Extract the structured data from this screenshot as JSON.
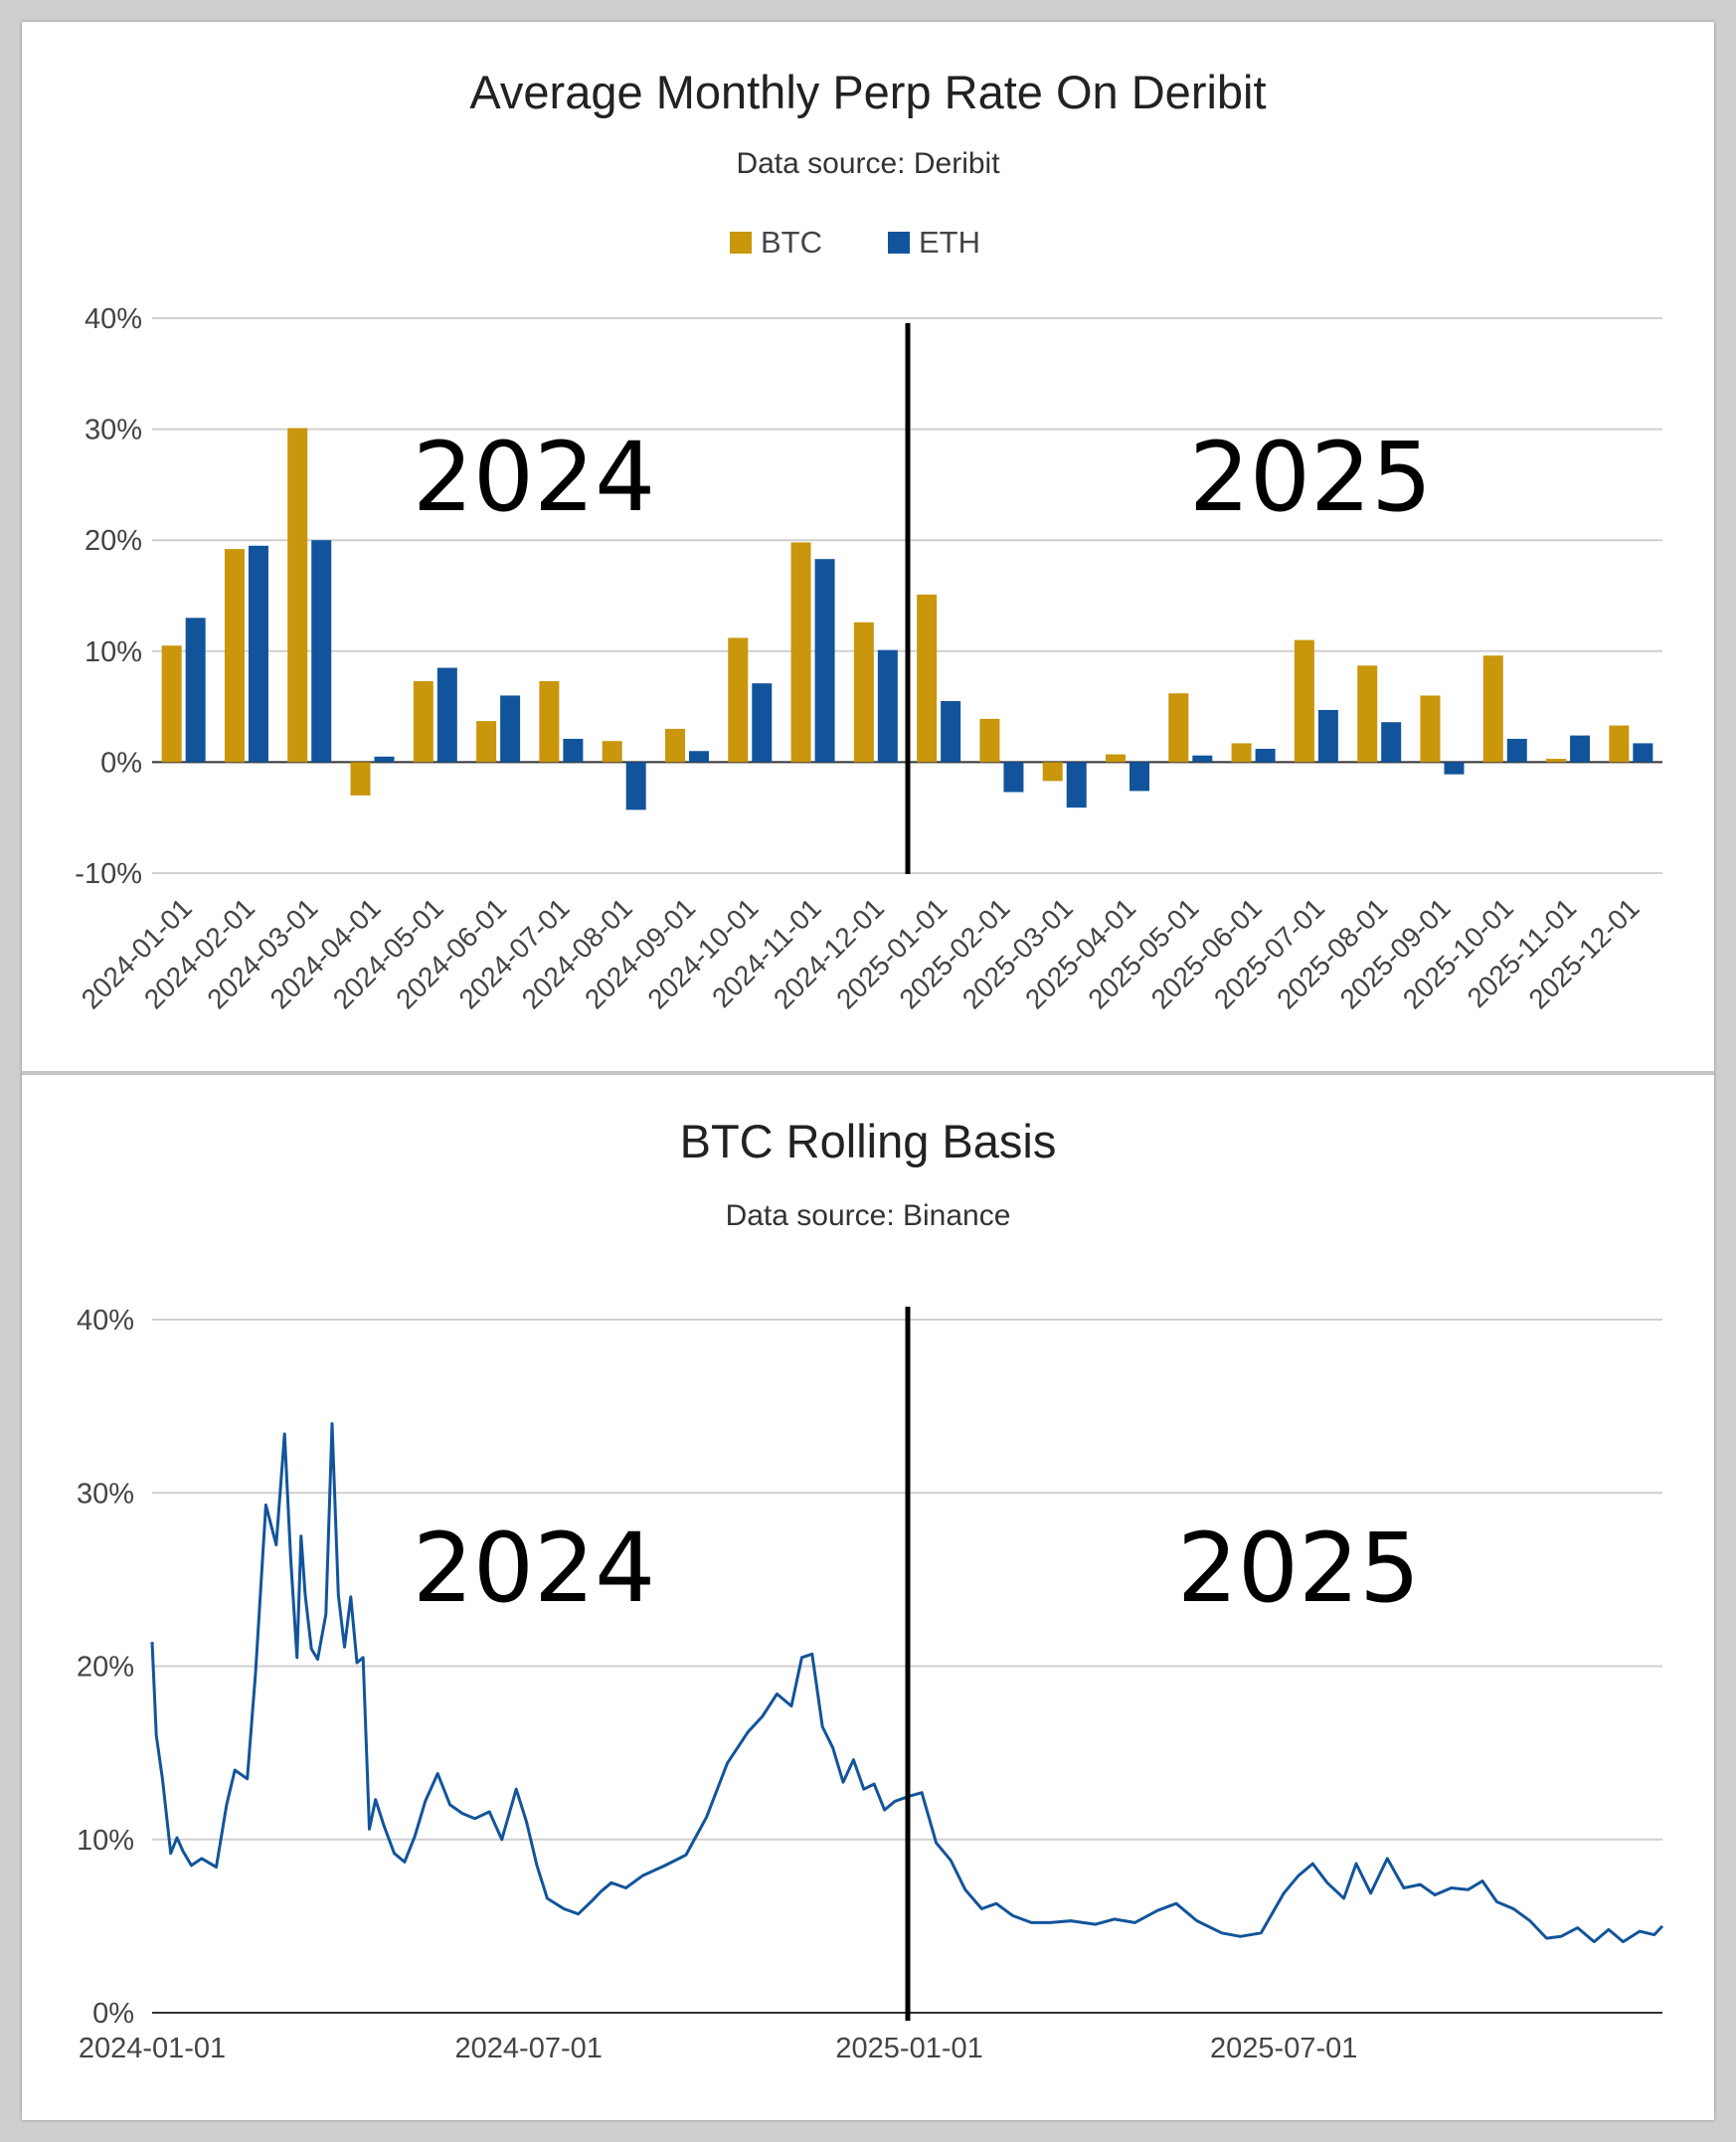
{
  "chart_data": [
    {
      "type": "bar",
      "title": "Average Monthly Perp Rate On Deribit",
      "subtitle": "Data source: Deribit",
      "legend_position": "top-center",
      "ylim": [
        -10,
        40
      ],
      "yticks": [
        "-10%",
        "0%",
        "10%",
        "20%",
        "30%",
        "40%"
      ],
      "grid": true,
      "categories": [
        "2024-01-01",
        "2024-02-01",
        "2024-03-01",
        "2024-04-01",
        "2024-05-01",
        "2024-06-01",
        "2024-07-01",
        "2024-08-01",
        "2024-09-01",
        "2024-10-01",
        "2024-11-01",
        "2024-12-01",
        "2025-01-01",
        "2025-02-01",
        "2025-03-01",
        "2025-04-01",
        "2025-05-01",
        "2025-06-01",
        "2025-07-01",
        "2025-08-01",
        "2025-09-01",
        "2025-10-01",
        "2025-11-01",
        "2025-12-01"
      ],
      "series": [
        {
          "name": "BTC",
          "color": "#c9960c",
          "values": [
            10.5,
            19.2,
            30.1,
            -3.0,
            7.3,
            3.7,
            7.3,
            1.9,
            3.0,
            11.2,
            19.8,
            12.6,
            15.1,
            3.9,
            -1.7,
            0.7,
            6.2,
            1.7,
            11.0,
            8.7,
            6.0,
            9.6,
            0.3,
            3.3
          ]
        },
        {
          "name": "ETH",
          "color": "#12549b",
          "values": [
            13.0,
            19.5,
            20.0,
            0.5,
            8.5,
            6.0,
            2.1,
            -4.3,
            1.0,
            7.1,
            18.3,
            10.1,
            5.5,
            -2.7,
            -4.1,
            -2.6,
            0.6,
            1.2,
            4.7,
            3.6,
            -1.1,
            2.1,
            2.4,
            1.7
          ]
        }
      ],
      "annotations": [
        "2024",
        "2025"
      ],
      "divider_at": "2025-01-01"
    },
    {
      "type": "line",
      "title": "BTC Rolling Basis",
      "subtitle": "Data source: Binance",
      "ylim": [
        0,
        40
      ],
      "yticks": [
        "0%",
        "10%",
        "20%",
        "30%",
        "40%"
      ],
      "xticks": [
        "2024-01-01",
        "2024-07-01",
        "2025-01-01",
        "2025-07-01"
      ],
      "xlim": [
        "2024-01-01",
        "2025-12-31"
      ],
      "grid": true,
      "series": [
        {
          "color": "#12549b",
          "x": [
            "2024-01-01",
            "2024-01-03",
            "2024-01-06",
            "2024-01-10",
            "2024-01-13",
            "2024-01-16",
            "2024-01-20",
            "2024-01-25",
            "2024-02-01",
            "2024-02-06",
            "2024-02-10",
            "2024-02-16",
            "2024-02-20",
            "2024-02-25",
            "2024-03-01",
            "2024-03-05",
            "2024-03-08",
            "2024-03-11",
            "2024-03-13",
            "2024-03-15",
            "2024-03-18",
            "2024-03-21",
            "2024-03-25",
            "2024-03-28",
            "2024-03-31",
            "2024-04-03",
            "2024-04-06",
            "2024-04-09",
            "2024-04-12",
            "2024-04-15",
            "2024-04-18",
            "2024-04-22",
            "2024-04-27",
            "2024-05-02",
            "2024-05-07",
            "2024-05-12",
            "2024-05-18",
            "2024-05-24",
            "2024-05-30",
            "2024-06-05",
            "2024-06-12",
            "2024-06-18",
            "2024-06-25",
            "2024-06-30",
            "2024-07-05",
            "2024-07-10",
            "2024-07-18",
            "2024-07-25",
            "2024-08-01",
            "2024-08-05",
            "2024-08-10",
            "2024-08-17",
            "2024-08-25",
            "2024-09-05",
            "2024-09-15",
            "2024-09-25",
            "2024-10-05",
            "2024-10-15",
            "2024-10-22",
            "2024-10-29",
            "2024-11-05",
            "2024-11-10",
            "2024-11-15",
            "2024-11-20",
            "2024-11-25",
            "2024-11-30",
            "2024-12-05",
            "2024-12-10",
            "2024-12-15",
            "2024-12-20",
            "2024-12-25",
            "2025-01-01",
            "2025-01-07",
            "2025-01-14",
            "2025-01-21",
            "2025-01-28",
            "2025-02-05",
            "2025-02-12",
            "2025-02-20",
            "2025-03-01",
            "2025-03-10",
            "2025-03-20",
            "2025-04-01",
            "2025-04-10",
            "2025-04-20",
            "2025-05-01",
            "2025-05-10",
            "2025-05-20",
            "2025-06-01",
            "2025-06-10",
            "2025-06-20",
            "2025-07-01",
            "2025-07-08",
            "2025-07-15",
            "2025-07-22",
            "2025-07-30",
            "2025-08-05",
            "2025-08-12",
            "2025-08-20",
            "2025-08-28",
            "2025-09-05",
            "2025-09-12",
            "2025-09-20",
            "2025-09-28",
            "2025-10-05",
            "2025-10-12",
            "2025-10-20",
            "2025-10-28",
            "2025-11-05",
            "2025-11-12",
            "2025-11-20",
            "2025-11-28",
            "2025-12-05",
            "2025-12-12",
            "2025-12-20",
            "2025-12-27",
            "2025-12-31"
          ],
          "values": [
            21.4,
            16.0,
            13.5,
            9.2,
            10.1,
            9.3,
            8.5,
            8.9,
            8.4,
            12.0,
            14.0,
            13.5,
            19.6,
            29.3,
            27.0,
            33.4,
            26.2,
            20.5,
            27.5,
            24.1,
            21.0,
            20.4,
            23.0,
            34.0,
            24.1,
            21.1,
            24.0,
            20.2,
            20.5,
            10.6,
            12.3,
            10.8,
            9.2,
            8.7,
            10.2,
            12.2,
            13.8,
            12.0,
            11.5,
            11.2,
            11.6,
            10.0,
            12.9,
            11.0,
            8.5,
            6.6,
            6.0,
            5.7,
            6.5,
            7.0,
            7.5,
            7.2,
            7.9,
            8.5,
            9.1,
            11.3,
            14.4,
            16.2,
            17.1,
            18.4,
            17.7,
            20.5,
            20.7,
            16.5,
            15.3,
            13.3,
            14.6,
            12.9,
            13.2,
            11.7,
            12.2,
            12.5,
            12.7,
            9.8,
            8.8,
            7.1,
            6.0,
            6.3,
            5.6,
            5.2,
            5.2,
            5.3,
            5.1,
            5.4,
            5.2,
            5.9,
            6.3,
            5.3,
            4.6,
            4.4,
            4.6,
            6.9,
            7.9,
            8.6,
            7.5,
            6.6,
            8.6,
            6.9,
            8.9,
            7.2,
            7.4,
            6.8,
            7.2,
            7.1,
            7.6,
            6.4,
            6.0,
            5.3,
            4.3,
            4.4,
            4.9,
            4.1,
            4.8,
            4.1,
            4.7,
            4.5,
            5.0
          ]
        }
      ],
      "annotations": [
        "2024",
        "2025"
      ],
      "divider_at": "2025-01-01"
    }
  ]
}
